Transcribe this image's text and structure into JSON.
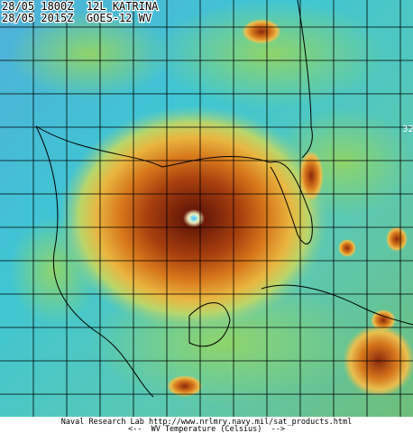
{
  "header": {
    "line1": "28/05 1800Z  12L KATRINA",
    "line2": "28/05 2015Z  GOES-12 WV"
  },
  "map": {
    "grid_label": "32"
  },
  "footer": {
    "credit": "Naval Research Lab http://www.nrlmry.navy.mil/sat_products.html",
    "legend": "<--  WV Temperature (Celsius)  -->"
  }
}
